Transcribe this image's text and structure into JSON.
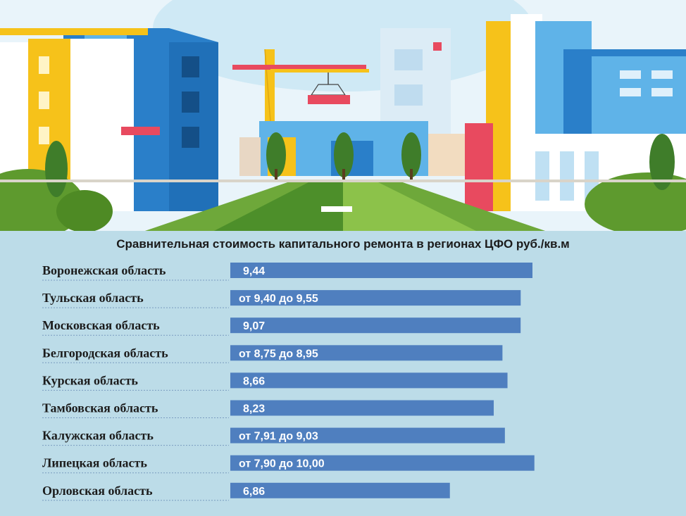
{
  "chart_data": {
    "type": "bar",
    "orientation": "horizontal",
    "title": "Сравнительная стоимость капитального ремонта в регионах ЦФО руб./кв.м",
    "categories": [
      "Воронежская область",
      "Тульская область",
      "Московская область",
      "Белгородская область",
      "Курская область",
      "Тамбовская область",
      "Калужская область",
      "Липецкая область",
      "Орловская область"
    ],
    "values": [
      9.44,
      9.55,
      9.07,
      8.95,
      8.66,
      8.23,
      9.03,
      10.0,
      6.86
    ],
    "value_labels": [
      "9,44",
      "от 9,40 до 9,55",
      "9,07",
      "от 8,75 до 8,95",
      "8,66",
      "8,23",
      "от 7,91 до 9,03",
      "от 7,90 до 10,00",
      "6,86"
    ],
    "bar_color": "#4f7fbf",
    "grid": false,
    "legend": "none"
  },
  "colors": {
    "background": "#bcdce8",
    "sky": "#e6f3f9",
    "yellow": "#f6c21a",
    "blue": "#2a7fc9",
    "light_blue": "#5fb3e8",
    "red": "#e84a5f",
    "green": "#5e9a2e",
    "grass": "#7fb63a"
  }
}
